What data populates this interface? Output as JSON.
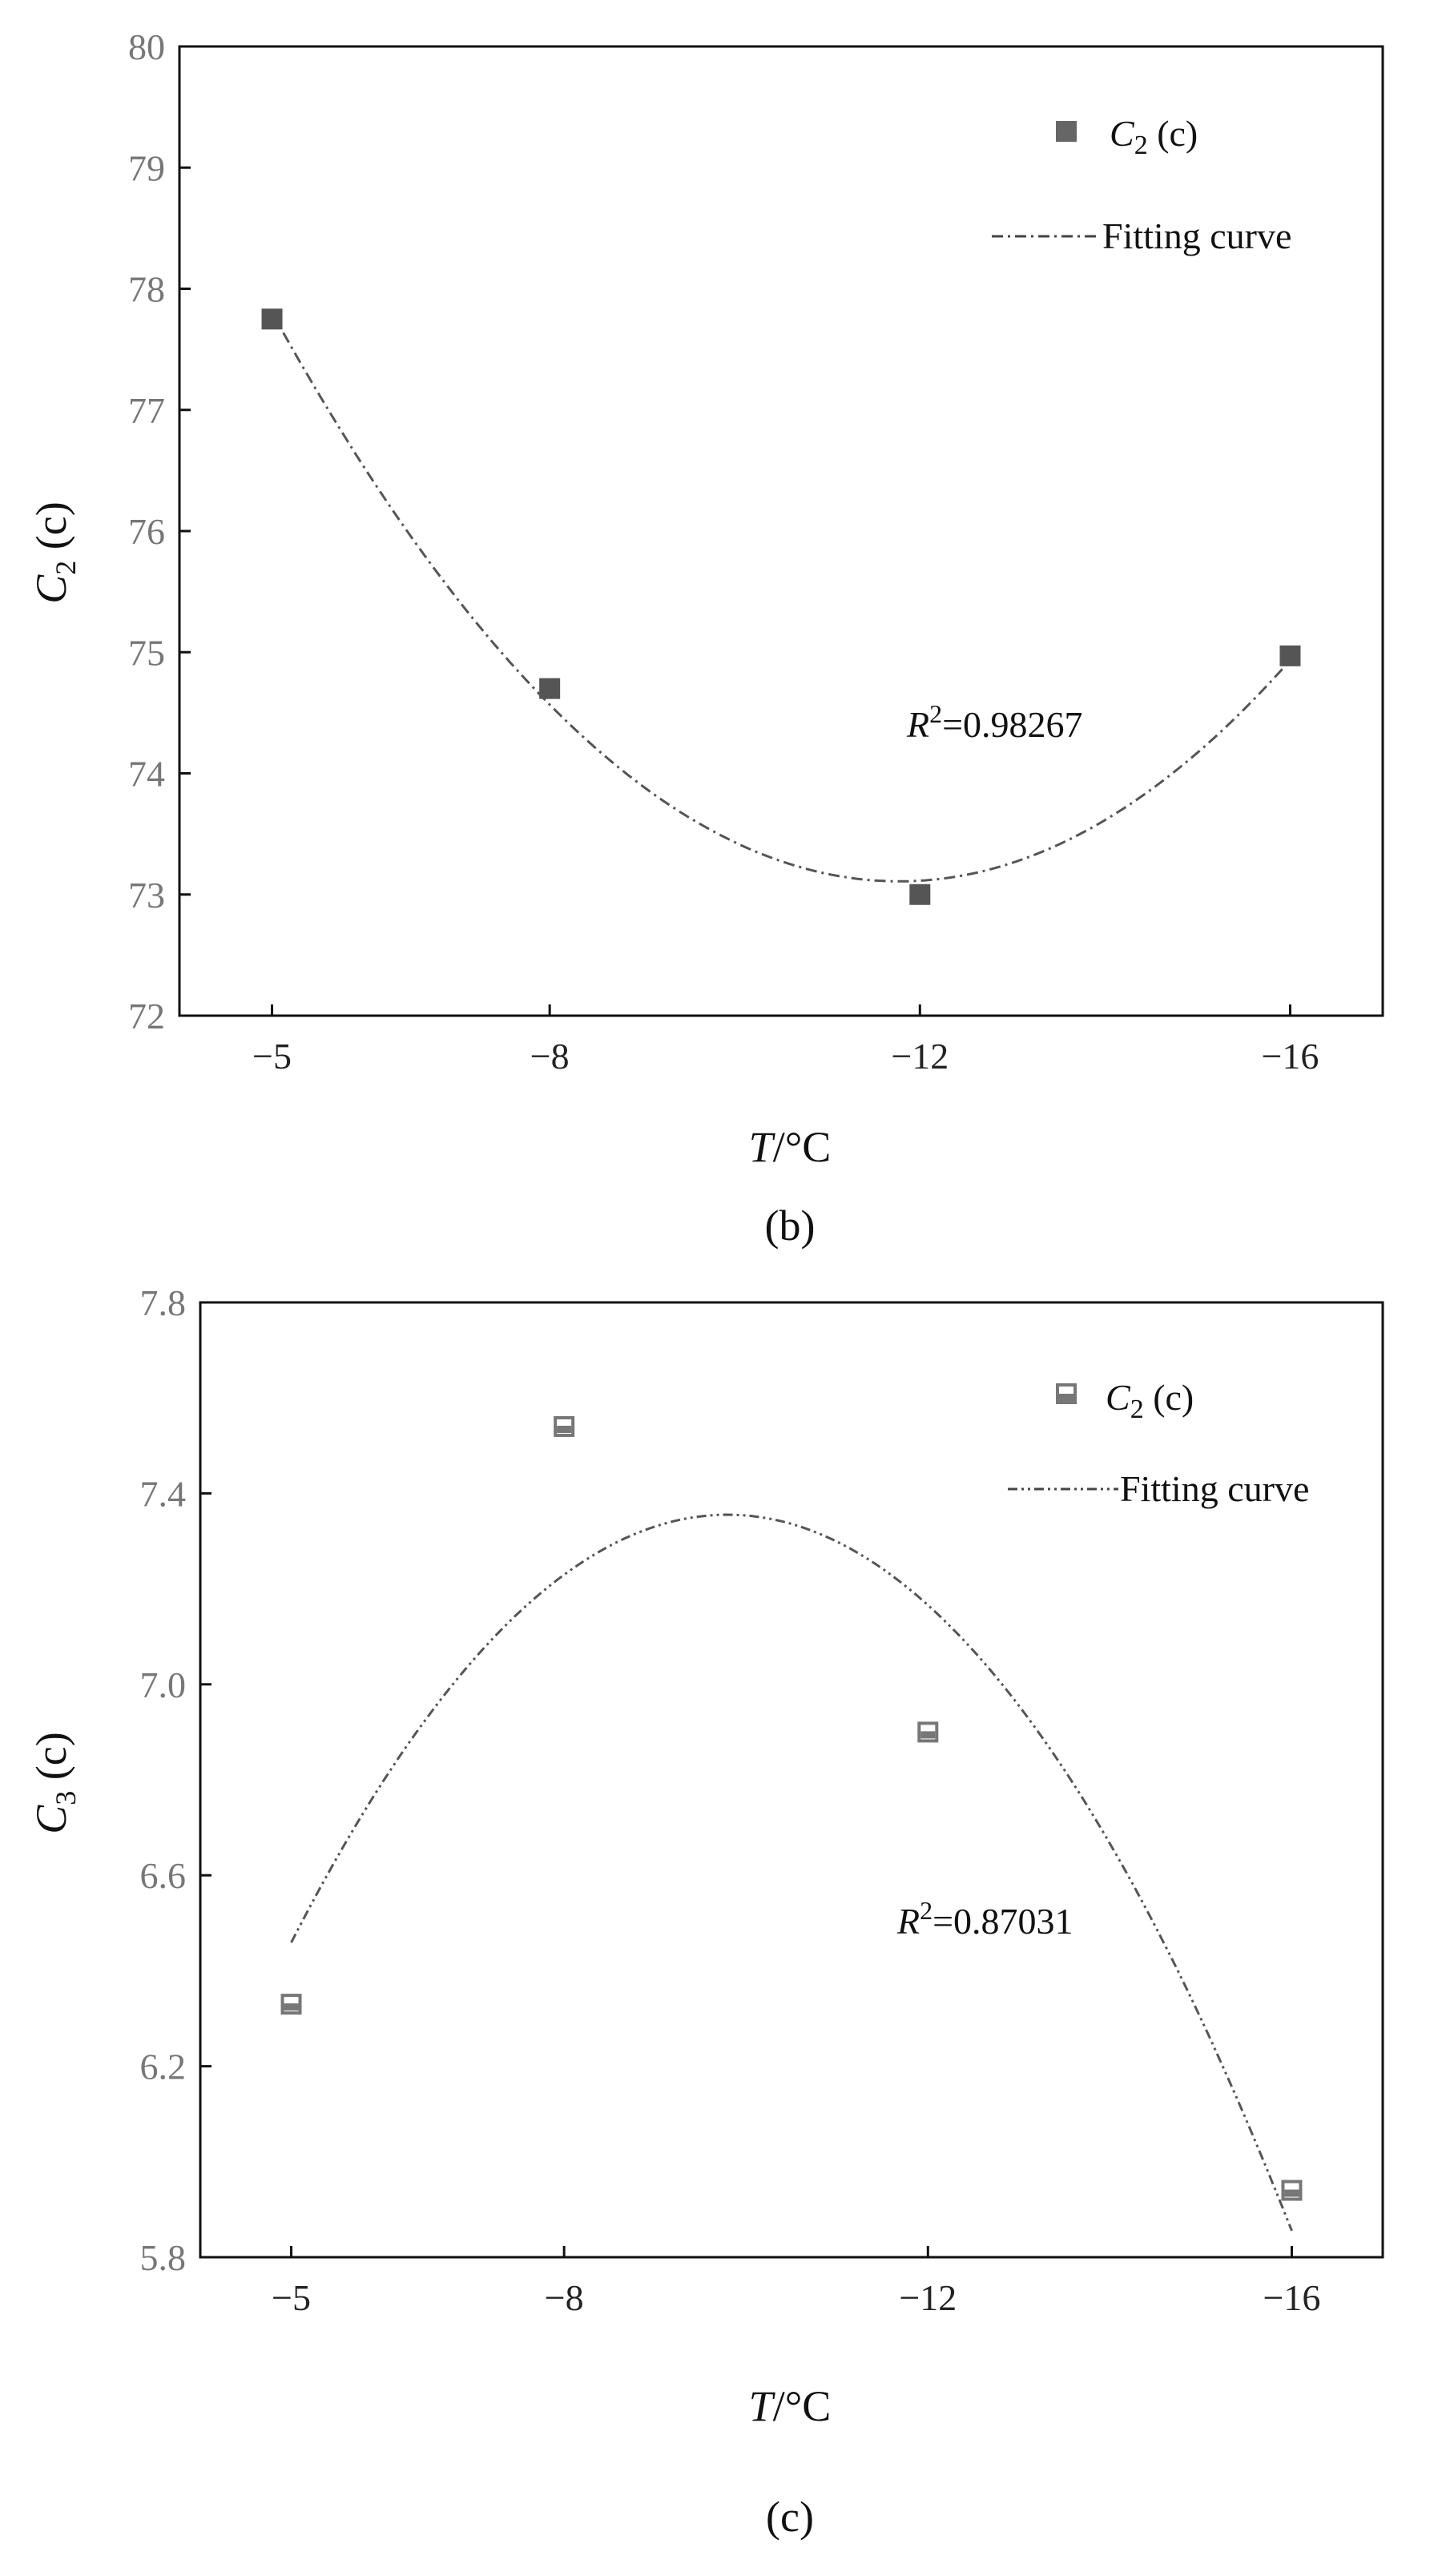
{
  "charts": [
    {
      "panel_label": "(b)",
      "ylabel_main": "C",
      "ylabel_sub": "2",
      "ylabel_tail": " (c)",
      "xlabel_var": "T",
      "xlabel_unit": "/°C",
      "legend_marker_main": "C",
      "legend_marker_sub": "2",
      "legend_marker_tail": " (c)",
      "legend_fit": "Fitting curve",
      "annotation_r": "R",
      "annotation_sup": "2",
      "annotation_val": "=0.98267",
      "marker_style": "filled",
      "curve_style": "dash-dot",
      "colors": {
        "marker": "#555555",
        "curve": "#555555",
        "axis": "#111111"
      }
    },
    {
      "panel_label": "(c)",
      "ylabel_main": "C",
      "ylabel_sub": "3",
      "ylabel_tail": " (c)",
      "xlabel_var": "T",
      "xlabel_unit": "/°C",
      "legend_marker_main": "C",
      "legend_marker_sub": "2",
      "legend_marker_tail": " (c)",
      "legend_fit": "Fitting curve",
      "annotation_r": "R",
      "annotation_sup": "2",
      "annotation_val": "=0.87031",
      "marker_style": "half",
      "curve_style": "dash-dot-dot",
      "colors": {
        "marker": "#777777",
        "curve": "#555555",
        "axis": "#111111"
      }
    }
  ],
  "chart_data": [
    {
      "type": "scatter",
      "categories": [
        "−5",
        "−8",
        "−12",
        "−16"
      ],
      "x": [
        -5,
        -8,
        -12,
        -16
      ],
      "ylim": [
        72,
        80
      ],
      "yticks": [
        "72",
        "73",
        "74",
        "75",
        "76",
        "77",
        "78",
        "79",
        "80"
      ],
      "series": [
        {
          "name": "C2 (c)",
          "values": [
            77.75,
            74.7,
            73.0,
            74.97
          ]
        }
      ],
      "fit": {
        "type": "quadratic",
        "r2": 0.98267
      },
      "xlabel": "T/°C",
      "ylabel": "C2 (c)",
      "legend": "top-right",
      "grid": false
    },
    {
      "type": "scatter",
      "categories": [
        "−5",
        "−8",
        "−12",
        "−16"
      ],
      "x": [
        -5,
        -8,
        -12,
        -16
      ],
      "ylim": [
        5.8,
        7.8
      ],
      "yticks": [
        "5.8",
        "6.2",
        "6.6",
        "7.0",
        "7.4",
        "7.8"
      ],
      "series": [
        {
          "name": "C2 (c)",
          "values": [
            6.33,
            7.54,
            6.9,
            5.94
          ]
        }
      ],
      "fit": {
        "type": "quadratic",
        "r2": 0.87031
      },
      "xlabel": "T/°C",
      "ylabel": "C3 (c)",
      "legend": "top-right",
      "grid": false
    }
  ]
}
